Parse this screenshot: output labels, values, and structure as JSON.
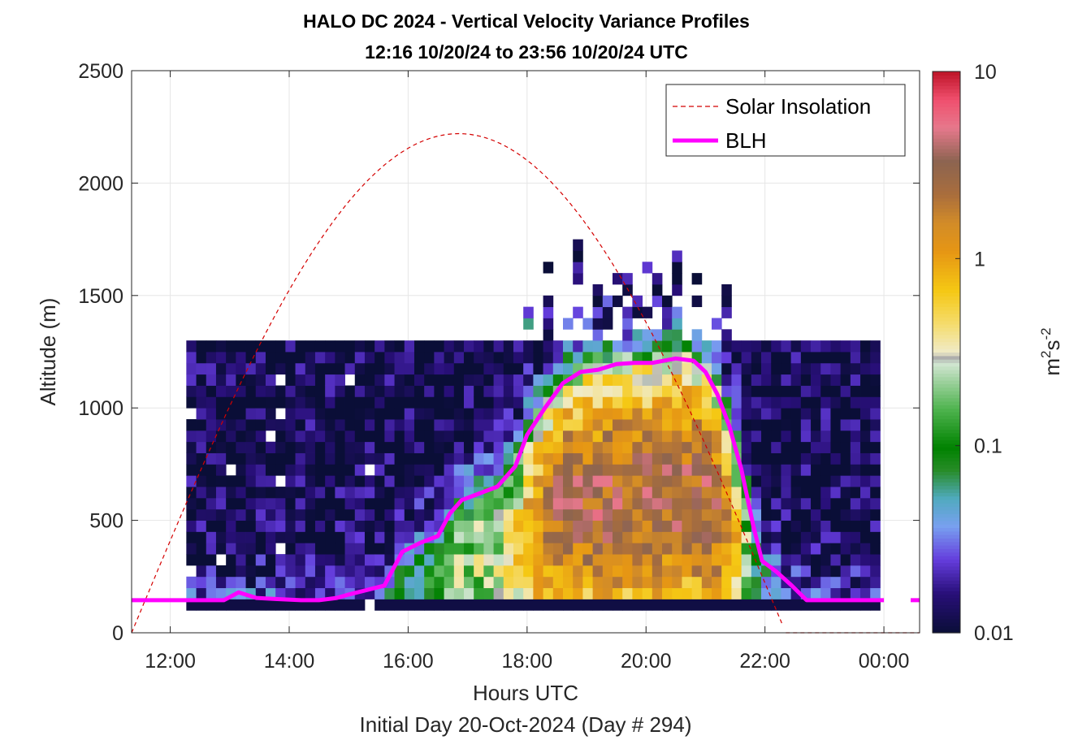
{
  "chart_data": {
    "type": "heatmap",
    "title": "HALO DC 2024 - Vertical Velocity Variance Profiles",
    "subtitle": "12:16 10/20/24 to 23:56 10/20/24  UTC",
    "xlabel": "Hours UTC",
    "xlabel2": "Initial Day 20-Oct-2024 (Day # 294)",
    "ylabel": "Altitude (m)",
    "colorbar_label_base": "m",
    "colorbar_label_sup1": "2",
    "colorbar_label_mid": "s",
    "colorbar_label_sup2": "-2",
    "x_range": [
      11.35,
      24.6
    ],
    "y_range": [
      0,
      2500
    ],
    "x_ticks": [
      12,
      14,
      16,
      18,
      20,
      22,
      24
    ],
    "x_tick_labels": [
      "12:00",
      "14:00",
      "16:00",
      "18:00",
      "20:00",
      "22:00",
      "00:00"
    ],
    "y_ticks": [
      0,
      500,
      1000,
      1500,
      2000,
      2500
    ],
    "y_tick_labels": [
      "0",
      "500",
      "1000",
      "1500",
      "2000",
      "2500"
    ],
    "color_scale": "log",
    "color_range": [
      0.01,
      10
    ],
    "color_ticks": [
      0.01,
      0.1,
      1,
      10
    ],
    "color_tick_labels": [
      "0.01",
      "0.1",
      "1",
      "10"
    ],
    "grid": true,
    "legend": {
      "position": "top-right",
      "entries": [
        {
          "label": "Solar Insolation",
          "color": "#d40000",
          "style": "dashed"
        },
        {
          "label": "BLH",
          "color": "#ff00ff",
          "style": "solid"
        }
      ]
    },
    "series": [
      {
        "name": "BLH",
        "color": "#ff00ff",
        "x": [
          11.35,
          12.0,
          12.5,
          12.9,
          13.15,
          13.45,
          13.8,
          14.2,
          14.5,
          14.8,
          15.0,
          15.3,
          15.6,
          15.9,
          16.2,
          16.5,
          16.7,
          16.9,
          17.2,
          17.5,
          17.8,
          18.0,
          18.3,
          18.6,
          18.9,
          19.2,
          19.5,
          19.8,
          20.1,
          20.3,
          20.5,
          20.8,
          21.0,
          21.2,
          21.4,
          21.6,
          21.8,
          21.95,
          22.2,
          22.45,
          22.7,
          23.0,
          23.5,
          24.0
        ],
        "y": [
          145,
          145,
          145,
          145,
          180,
          155,
          150,
          145,
          145,
          155,
          170,
          190,
          210,
          360,
          400,
          430,
          530,
          590,
          620,
          650,
          740,
          880,
          1000,
          1110,
          1160,
          1170,
          1195,
          1200,
          1200,
          1210,
          1220,
          1210,
          1160,
          1060,
          920,
          730,
          480,
          320,
          270,
          210,
          145,
          145,
          145,
          145
        ],
        "extra_x": [
          24.45,
          24.6
        ],
        "extra_y": [
          145,
          145
        ]
      },
      {
        "name": "Solar Insolation",
        "color": "#d40000",
        "sunrise": 11.35,
        "peak_time": 16.95,
        "peak_altitude": 2220,
        "sunset": 22.35
      }
    ]
  }
}
